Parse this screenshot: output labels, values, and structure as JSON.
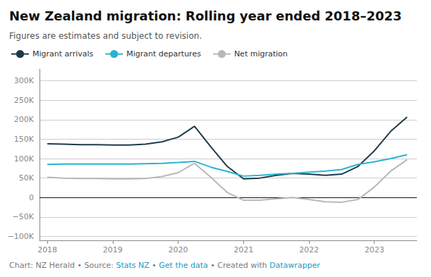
{
  "chart_data": {
    "type": "line",
    "title": "New Zealand migration: Rolling year ended 2018–2023",
    "subtitle": "Figures are estimates and subject to revision.",
    "footer": [
      {
        "text": "Chart: NZ Herald • Source: ",
        "color": "#7a7a7a"
      },
      {
        "text": "Stats NZ",
        "color": "#1a9bc4"
      },
      {
        "text": " • ",
        "color": "#7a7a7a"
      },
      {
        "text": "Get the data",
        "color": "#1a9bc4"
      },
      {
        "text": " • Created with ",
        "color": "#7a7a7a"
      },
      {
        "text": "Datawrapper",
        "color": "#1a9bc4"
      }
    ],
    "x": [
      2018.0,
      2018.25,
      2018.5,
      2018.75,
      2019.0,
      2019.25,
      2019.5,
      2019.75,
      2020.0,
      2020.25,
      2020.5,
      2020.75,
      2021.0,
      2021.25,
      2021.5,
      2021.75,
      2022.0,
      2022.25,
      2022.5,
      2022.75,
      2023.0,
      2023.25,
      2023.5
    ],
    "series": [
      {
        "name": "Migrant arrivals",
        "color": "#1e3a4a",
        "values": [
          138000,
          137000,
          136000,
          136000,
          135000,
          135000,
          137000,
          143000,
          155000,
          183000,
          130000,
          80000,
          48000,
          50000,
          57000,
          62000,
          60000,
          57000,
          60000,
          80000,
          120000,
          170000,
          207000
        ]
      },
      {
        "name": "Migrant departures",
        "color": "#28b4d0",
        "values": [
          85000,
          86000,
          86000,
          86000,
          86000,
          86000,
          87000,
          88000,
          90000,
          93000,
          78000,
          67000,
          55000,
          57000,
          60000,
          62000,
          65000,
          68000,
          72000,
          85000,
          92000,
          100000,
          110000
        ]
      },
      {
        "name": "Net migration",
        "color": "#b8b8b8",
        "values": [
          52000,
          50000,
          49000,
          49000,
          48000,
          48000,
          49000,
          54000,
          64000,
          88000,
          52000,
          13000,
          -7000,
          -7000,
          -3000,
          0,
          -5000,
          -11000,
          -12000,
          -5000,
          27000,
          68000,
          97000
        ]
      }
    ],
    "xlim": [
      2017.88,
      2023.65
    ],
    "xticks": [
      2018,
      2019,
      2020,
      2021,
      2022,
      2023
    ],
    "ylim": [
      -110000,
      330000
    ],
    "yticks": [
      {
        "value": -100000,
        "label": "−100K"
      },
      {
        "value": -50000,
        "label": "−50K"
      },
      0,
      {
        "value": 50000,
        "label": "50K"
      },
      {
        "value": 100000,
        "label": "100K"
      },
      {
        "value": 150000,
        "label": "150K"
      },
      {
        "value": 200000,
        "label": "200K"
      },
      {
        "value": 250000,
        "label": "250K"
      },
      {
        "value": 300000,
        "label": "300K"
      }
    ],
    "grid": "y",
    "legend": "upper left"
  }
}
